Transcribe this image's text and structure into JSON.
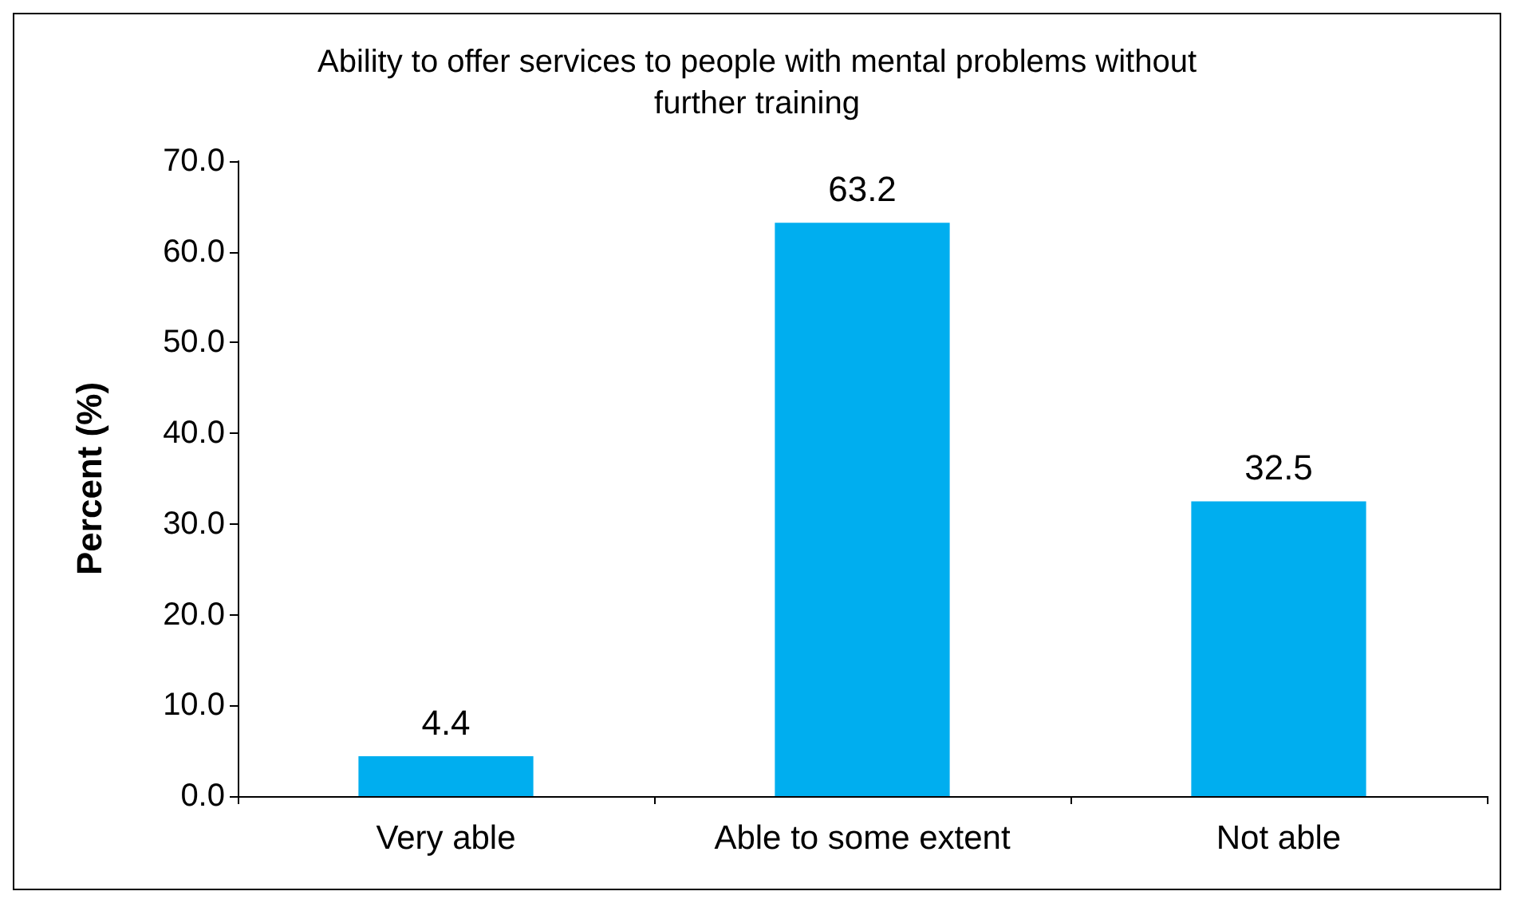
{
  "chart_data": {
    "type": "bar",
    "title": "Ability to offer services to people with mental problems without\nfurther training",
    "ylabel": "Percent (%)",
    "categories": [
      "Very able",
      "Able to some extent",
      "Not able"
    ],
    "values": [
      4.4,
      63.2,
      32.5
    ],
    "color": "#00aeef",
    "data_labels": true,
    "grid": false,
    "ylim": [
      0,
      70
    ],
    "yticks": [
      {
        "value": 0,
        "label": "0.0"
      },
      {
        "value": 10,
        "label": "10.0"
      },
      {
        "value": 20,
        "label": "20.0"
      },
      {
        "value": 30,
        "label": "30.0"
      },
      {
        "value": 40,
        "label": "40.0"
      },
      {
        "value": 50,
        "label": "50.0"
      },
      {
        "value": 60,
        "label": "60.0"
      },
      {
        "value": 70,
        "label": "70.0"
      }
    ]
  }
}
